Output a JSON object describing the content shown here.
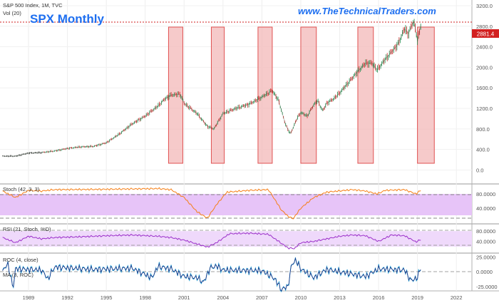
{
  "header": {
    "symbol_line": "S&P 500 Index, 1M, TVC",
    "volume_label": "Vol (20)",
    "title": "SPX Monthly",
    "website": "www.TheTechnicalTraders.com"
  },
  "colors": {
    "title": "#1e6ff0",
    "website": "#1e6ff0",
    "price_line": "#d21f1f",
    "highlight_fill": "#f3b8b8",
    "highlight_stroke": "#e05252",
    "stoch_line": "#f57f17",
    "stoch_band": "#e7c4f8",
    "rsi_line": "#9b2fc9",
    "rsi_band": "#efd9fb",
    "candle_up": "#1f8b4c",
    "candle_down": "#c62828",
    "roc_line": "#1a3b8a",
    "roc_ma_line": "#29a3d6"
  },
  "chart_data": [
    {
      "type": "line",
      "name": "SPX Monthly price",
      "x": [
        1987.0,
        1988.0,
        1989.0,
        1990.0,
        1991.0,
        1992.0,
        1993.0,
        1994.0,
        1995.0,
        1996.0,
        1997.0,
        1998.0,
        1998.5,
        1999.0,
        1999.5,
        2000.0,
        2000.7,
        2001.0,
        2001.5,
        2002.0,
        2002.8,
        2003.3,
        2004.0,
        2005.0,
        2006.0,
        2007.0,
        2007.8,
        2008.3,
        2008.8,
        2009.2,
        2009.7,
        2010.0,
        2010.5,
        2011.0,
        2011.3,
        2011.7,
        2012.0,
        2012.5,
        2013.0,
        2013.5,
        2014.0,
        2014.5,
        2015.0,
        2015.5,
        2015.9,
        2016.2,
        2016.5,
        2017.0,
        2017.5,
        2018.0,
        2018.3,
        2018.7,
        2018.9,
        2019.0,
        2019.3
      ],
      "y": [
        270,
        270,
        330,
        340,
        370,
        420,
        450,
        460,
        530,
        700,
        900,
        1050,
        1150,
        1250,
        1380,
        1460,
        1480,
        1300,
        1200,
        1100,
        850,
        800,
        1100,
        1200,
        1280,
        1420,
        1550,
        1350,
        900,
        700,
        1000,
        1120,
        1050,
        1270,
        1350,
        1150,
        1300,
        1380,
        1500,
        1650,
        1800,
        1950,
        2080,
        2080,
        1950,
        2050,
        2150,
        2300,
        2450,
        2750,
        2650,
        2900,
        2700,
        2500,
        2880
      ],
      "ylim": [
        -160,
        3200
      ],
      "y_ticks": [
        "3200.0",
        "2800.0",
        "2400.0",
        "2000.0",
        "1600.0",
        "1200.0",
        "800.0",
        "400.0",
        "0.0"
      ],
      "current_value": "2881.4",
      "highlight_ranges": [
        [
          1999.8,
          2000.9
        ],
        [
          2003.1,
          2004.1
        ],
        [
          2006.7,
          2007.8
        ],
        [
          2010.0,
          2011.2
        ],
        [
          2014.4,
          2015.6
        ],
        [
          2019.0,
          2020.3
        ]
      ]
    },
    {
      "type": "line",
      "name": "Stoch (42, 3, 3)",
      "x": [
        1987,
        1988,
        1989,
        1990,
        1991,
        1995,
        1999,
        2000,
        2001,
        2002,
        2002.8,
        2003.5,
        2004.3,
        2006,
        2007.5,
        2007.9,
        2008.5,
        2009,
        2009.4,
        2010,
        2011,
        2012,
        2014,
        2015,
        2015.9,
        2016.5,
        2018,
        2018.9,
        2019.3
      ],
      "y": [
        88,
        70,
        90,
        88,
        92,
        93,
        95,
        92,
        70,
        30,
        12,
        50,
        85,
        90,
        92,
        70,
        35,
        18,
        10,
        40,
        70,
        85,
        92,
        88,
        80,
        90,
        92,
        80,
        92
      ],
      "ylim": [
        0,
        100
      ],
      "y_ticks": [
        "80.0000",
        "40.0000"
      ]
    },
    {
      "type": "line",
      "name": "RSI (21, Stoch, %D)",
      "x": [
        1987,
        1988,
        1989,
        1990,
        1991,
        1993,
        1995,
        1997,
        1999,
        2000,
        2001,
        2002,
        2002.8,
        2003.5,
        2004.5,
        2006,
        2007.5,
        2008.3,
        2009,
        2009.5,
        2010,
        2011,
        2012,
        2013,
        2014,
        2015,
        2016,
        2017,
        2018,
        2018.9,
        2019.3
      ],
      "y": [
        55,
        35,
        60,
        50,
        55,
        58,
        62,
        65,
        60,
        55,
        45,
        30,
        18,
        35,
        70,
        72,
        68,
        40,
        15,
        12,
        35,
        40,
        50,
        60,
        65,
        62,
        40,
        65,
        62,
        38,
        48
      ],
      "ylim": [
        0,
        100
      ],
      "y_ticks": [
        "80.0000",
        "40.0000"
      ]
    },
    {
      "type": "line",
      "name": "ROC (4, close) / MA (3, ROC)",
      "x": [
        1987,
        1987.4,
        1987.8,
        1988,
        1990,
        1990.5,
        1991,
        1994,
        1997,
        1998.5,
        1999,
        2000,
        2001,
        2002,
        2002.5,
        2003,
        2003.5,
        2004,
        2007,
        2008,
        2008.5,
        2009,
        2009.3,
        2009.6,
        2010,
        2011,
        2012,
        2015,
        2016,
        2018,
        2018.5,
        2019,
        2019.3
      ],
      "y": [
        0,
        15,
        -28,
        5,
        3,
        -12,
        8,
        4,
        6,
        -10,
        9,
        5,
        -8,
        -10,
        -18,
        6,
        10,
        3,
        2,
        -12,
        -30,
        -25,
        12,
        20,
        5,
        -10,
        4,
        -8,
        5,
        3,
        -15,
        -10,
        10
      ],
      "ylim": [
        -30,
        28
      ],
      "y_ticks": [
        "25.0000",
        "0.0000",
        "-25.0000"
      ]
    }
  ],
  "panels": {
    "stoch_label": "Stoch (42, 3, 3)",
    "rsi_label": "RSI (21, Stoch, %D)",
    "roc_label": "ROC (4, close)",
    "roc_sub_label": "MA (3, ROC)"
  },
  "time_axis": {
    "ticks": [
      "1989",
      "1992",
      "1995",
      "1998",
      "2001",
      "2004",
      "2007",
      "2010",
      "2013",
      "2016",
      "2019",
      "2022"
    ],
    "values": [
      1989,
      1992,
      1995,
      1998,
      2001,
      2004,
      2007,
      2010,
      2013,
      2016,
      2019,
      2022
    ],
    "xlim": [
      1986.8,
      2023.2
    ]
  }
}
